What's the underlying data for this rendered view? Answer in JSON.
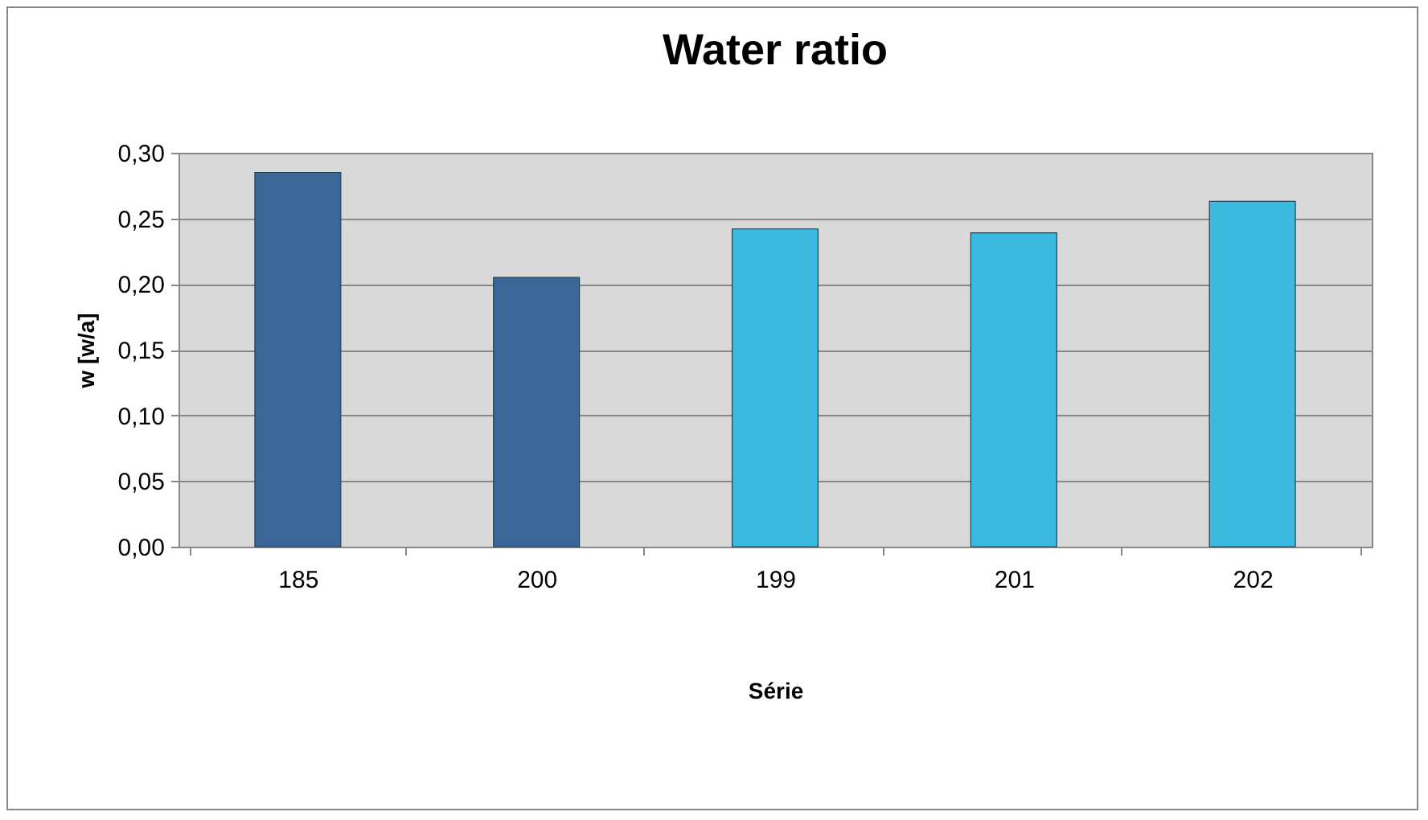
{
  "chart_data": {
    "type": "bar",
    "title": "Water ratio",
    "xlabel": "Série",
    "ylabel": "w [w/a]",
    "categories": [
      "185",
      "200",
      "199",
      "201",
      "202"
    ],
    "values": [
      0.285,
      0.205,
      0.242,
      0.239,
      0.263
    ],
    "colors": [
      "#3b6698",
      "#3b6698",
      "#3bb9de",
      "#3bb9de",
      "#3bb9de"
    ],
    "ylim": [
      0,
      0.3
    ],
    "yticks": [
      {
        "value": 0,
        "label": "0,00"
      },
      {
        "value": 0.05,
        "label": "0,05"
      },
      {
        "value": 0.1,
        "label": "0,10"
      },
      {
        "value": 0.15,
        "label": "0,15"
      },
      {
        "value": 0.2,
        "label": "0,20"
      },
      {
        "value": 0.25,
        "label": "0,25"
      },
      {
        "value": 0.3,
        "label": "0,30"
      }
    ],
    "grid": "y"
  }
}
